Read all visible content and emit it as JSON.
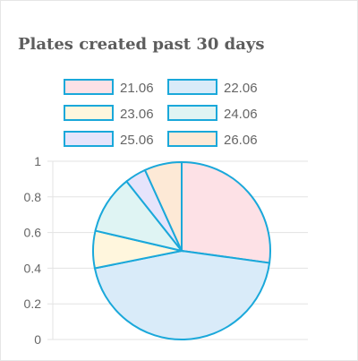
{
  "card": {
    "title": "Plates created past 30 days"
  },
  "chart_data": {
    "type": "pie",
    "categories": [
      "21.06",
      "22.06",
      "23.06",
      "24.06",
      "25.06",
      "26.06"
    ],
    "values": [
      28,
      46,
      7,
      11,
      4,
      7
    ],
    "colors": [
      "#fde1e6",
      "#d9ebf9",
      "#fff6dd",
      "#dff4f3",
      "#e6e4fb",
      "#fde9d6"
    ],
    "border_color": "#1aa8da",
    "legend_position": "top",
    "y_ticks": [
      "0",
      "0.2",
      "0.4",
      "0.6",
      "0.8",
      "1"
    ],
    "grid": true
  }
}
